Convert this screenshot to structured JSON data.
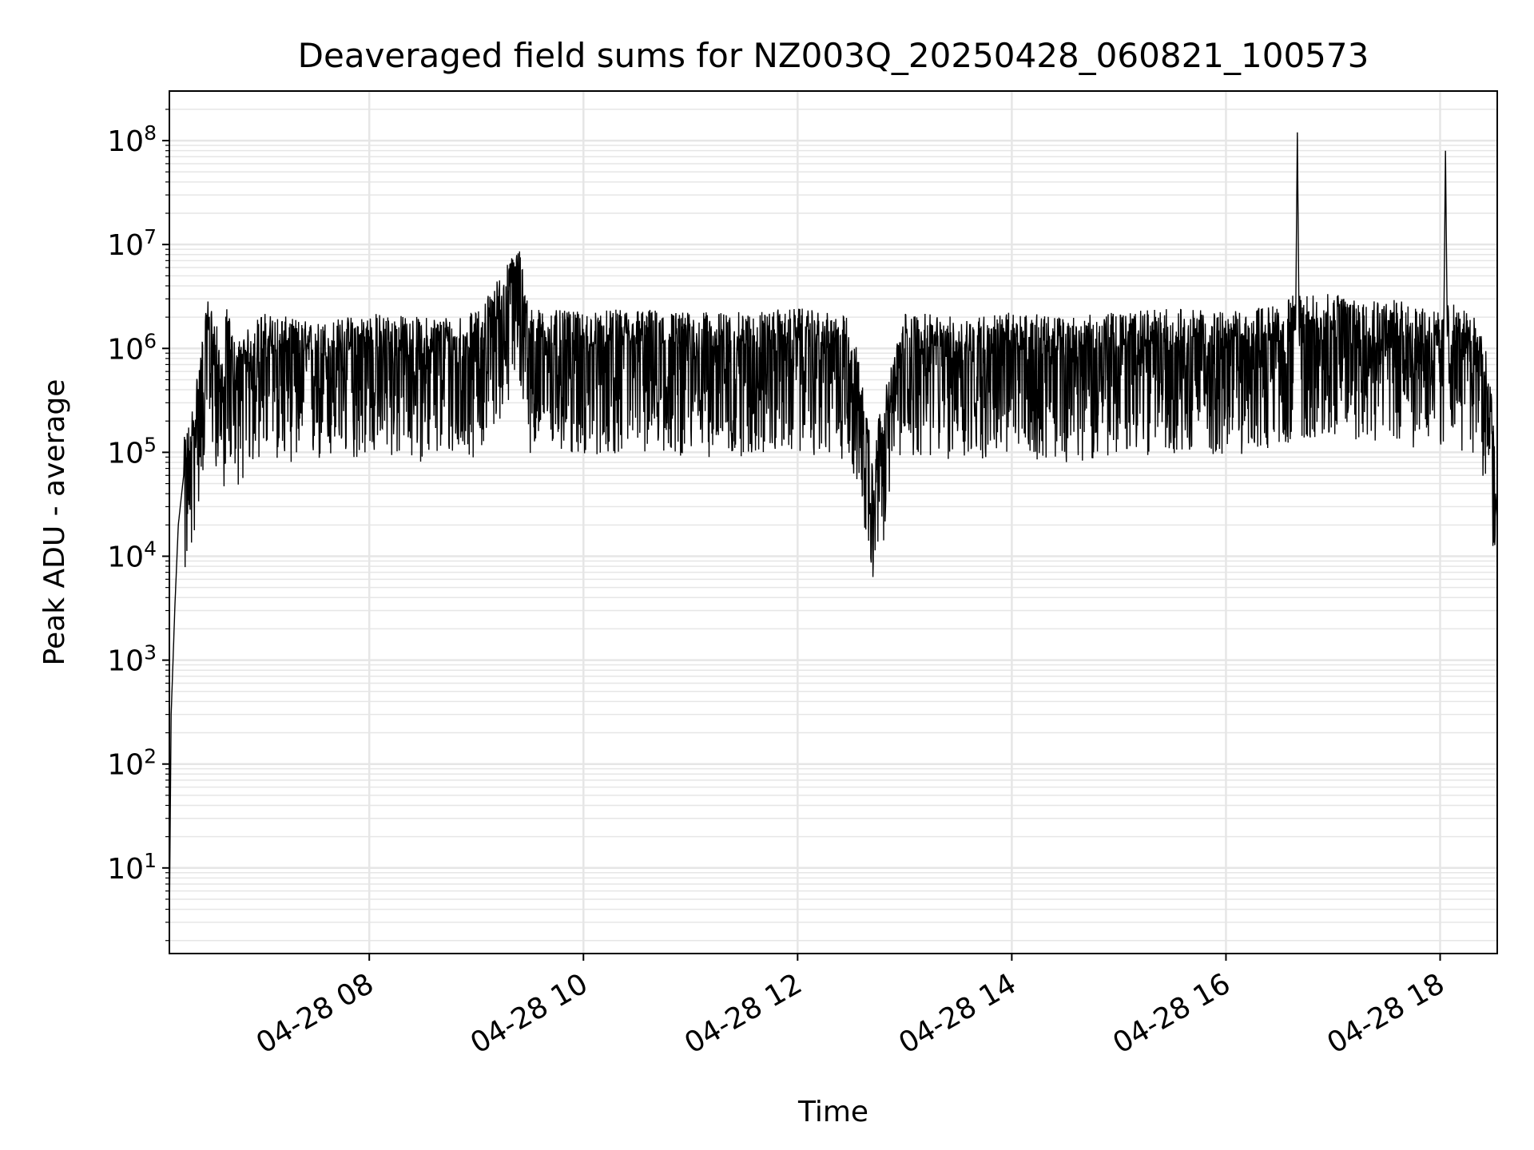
{
  "chart_data": {
    "type": "line",
    "title": "Deaveraged field sums for NZ003Q_20250428_060821_100573",
    "xlabel": "Time",
    "ylabel": "Peak ADU - average",
    "yscale": "log",
    "ylim": [
      1.5,
      300000000
    ],
    "xlim": [
      "2025-04-28 06:08",
      "2025-04-28 18:32"
    ],
    "x_ticks": [
      "2025-04-28 08:00",
      "2025-04-28 10:00",
      "2025-04-28 12:00",
      "2025-04-28 14:00",
      "2025-04-28 16:00",
      "2025-04-28 18:00"
    ],
    "x_tick_labels": [
      "04-28 08",
      "04-28 10",
      "04-28 12",
      "04-28 14",
      "04-28 16",
      "04-28 18"
    ],
    "y_ticks": [
      10,
      100,
      1000,
      10000,
      100000,
      1000000,
      10000000,
      100000000
    ],
    "y_tick_labels": [
      {
        "base": "10",
        "exp": "1"
      },
      {
        "base": "10",
        "exp": "2"
      },
      {
        "base": "10",
        "exp": "3"
      },
      {
        "base": "10",
        "exp": "4"
      },
      {
        "base": "10",
        "exp": "5"
      },
      {
        "base": "10",
        "exp": "6"
      },
      {
        "base": "10",
        "exp": "7"
      },
      {
        "base": "10",
        "exp": "8"
      }
    ],
    "grid": true,
    "line_color": "#000000",
    "grid_color": "#e6e6e6",
    "series": [
      {
        "x": [
          "2025-04-28 06:08",
          "2025-04-28 06:09",
          "2025-04-28 06:11",
          "2025-04-28 06:13",
          "2025-04-28 06:16",
          "2025-04-28 06:20",
          "2025-04-28 06:25",
          "2025-04-28 06:30",
          "2025-04-28 06:35",
          "2025-04-28 06:38",
          "2025-04-28 06:40",
          "2025-04-28 06:45",
          "2025-04-28 07:00",
          "2025-04-28 07:30",
          "2025-04-28 08:00",
          "2025-04-28 08:30",
          "2025-04-28 09:00",
          "2025-04-28 09:24",
          "2025-04-28 09:30",
          "2025-04-28 10:00",
          "2025-04-28 10:30",
          "2025-04-28 11:00",
          "2025-04-28 11:30",
          "2025-04-28 12:00",
          "2025-04-28 12:30",
          "2025-04-28 12:42",
          "2025-04-28 13:00",
          "2025-04-28 13:30",
          "2025-04-28 14:00",
          "2025-04-28 14:30",
          "2025-04-28 15:00",
          "2025-04-28 15:30",
          "2025-04-28 16:00",
          "2025-04-28 16:30",
          "2025-04-28 16:39",
          "2025-04-28 16:40",
          "2025-04-28 16:41",
          "2025-04-28 17:00",
          "2025-04-28 17:30",
          "2025-04-28 18:00",
          "2025-04-28 18:02",
          "2025-04-28 18:03",
          "2025-04-28 18:04",
          "2025-04-28 18:15",
          "2025-04-28 18:22",
          "2025-04-28 18:26",
          "2025-04-28 18:29",
          "2025-04-28 18:31",
          "2025-04-28 18:32"
        ],
        "y": [
          3,
          300,
          3000,
          20000,
          60000,
          100000,
          400000,
          1500000,
          700000,
          300000,
          1200000,
          500000,
          1000000,
          800000,
          1000000,
          900000,
          1000000,
          4500000,
          1100000,
          1000000,
          1100000,
          1000000,
          1000000,
          1100000,
          900000,
          60000,
          1000000,
          900000,
          1000000,
          900000,
          1000000,
          1100000,
          1000000,
          1200000,
          1500000,
          120000000,
          1500000,
          1500000,
          1400000,
          1000000,
          1300000,
          80000000,
          1300000,
          1000000,
          1000000,
          400000,
          150000,
          40000,
          22000
        ]
      }
    ]
  }
}
